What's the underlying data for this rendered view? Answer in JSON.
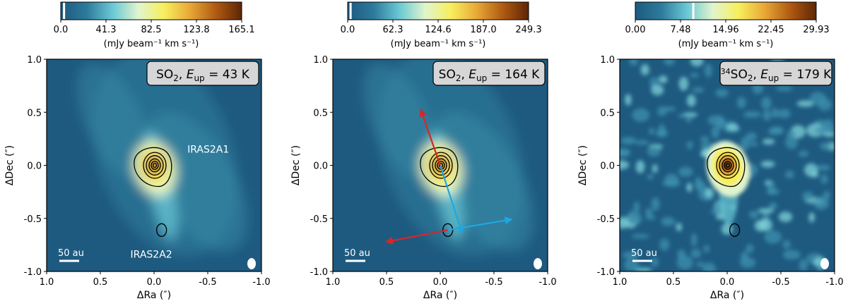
{
  "chart_data": [
    {
      "type": "heatmap",
      "title": "SO2, E_up = 43 K",
      "species": "SO",
      "subscript": "2",
      "isotope": "",
      "eup_sub": "up",
      "eup_value": "= 43 K",
      "colorbar": {
        "ticks": [
          "0.0",
          "41.3",
          "82.5",
          "123.8",
          "165.1"
        ],
        "range": [
          0,
          165.1
        ],
        "marker_value": 3.0,
        "label": "(mJy beam⁻¹ km s⁻¹)"
      },
      "xlabel": "ΔRa (″)",
      "ylabel": "ΔDec (″)",
      "xlim": [
        1.0,
        -1.0
      ],
      "ylim": [
        -1.0,
        1.0
      ],
      "xticks": [
        "1.0",
        "0.5",
        "0.0",
        "-0.5",
        "-1.0"
      ],
      "yticks": [
        "1.0",
        "0.5",
        "0.0",
        "-0.5",
        "-1.0"
      ],
      "scalebar_label": "50 au",
      "annotations": [
        "IRAS2A1",
        "IRAS2A2"
      ],
      "sources": [
        {
          "name": "IRAS2A1",
          "ra": 0.0,
          "dec": 0.0
        },
        {
          "name": "IRAS2A2",
          "ra": -0.07,
          "dec": -0.61
        }
      ],
      "peak_intensity": 1.0,
      "structure": "extended"
    },
    {
      "type": "heatmap",
      "title": "SO2, E_up = 164 K",
      "species": "SO",
      "subscript": "2",
      "isotope": "",
      "eup_sub": "up",
      "eup_value": "= 164 K",
      "colorbar": {
        "ticks": [
          "0.0",
          "62.3",
          "124.6",
          "187.0",
          "249.3"
        ],
        "range": [
          0,
          249.3
        ],
        "marker_value": 4.0,
        "label": "(mJy beam⁻¹ km s⁻¹)"
      },
      "xlabel": "ΔRa (″)",
      "ylabel": "ΔDec (″)",
      "xlim": [
        1.0,
        -1.0
      ],
      "ylim": [
        -1.0,
        1.0
      ],
      "xticks": [
        "1.0",
        "0.5",
        "0.0",
        "-0.5",
        "-1.0"
      ],
      "yticks": [
        "1.0",
        "0.5",
        "0.0",
        "-0.5",
        "-1.0"
      ],
      "scalebar_label": "50 au",
      "annotations": [],
      "outflow_arrows": [
        {
          "color": "#d62728",
          "from": [
            0.0,
            0.0
          ],
          "to": [
            0.18,
            0.52
          ]
        },
        {
          "color": "#1fa7e0",
          "from": [
            0.0,
            0.0
          ],
          "to": [
            -0.2,
            -0.63
          ]
        },
        {
          "color": "#d62728",
          "from": [
            -0.07,
            -0.61
          ],
          "to": [
            0.5,
            -0.72
          ]
        },
        {
          "color": "#1fa7e0",
          "from": [
            -0.07,
            -0.61
          ],
          "to": [
            -0.66,
            -0.51
          ]
        }
      ],
      "sources": [
        {
          "name": "IRAS2A1",
          "ra": 0.0,
          "dec": 0.0
        },
        {
          "name": "IRAS2A2",
          "ra": -0.07,
          "dec": -0.61
        }
      ],
      "peak_intensity": 1.0,
      "structure": "extended"
    },
    {
      "type": "heatmap",
      "title": "34SO2, E_up = 179 K",
      "species": "SO",
      "subscript": "2",
      "isotope": "34",
      "eup_sub": "up",
      "eup_value": "= 179 K",
      "colorbar": {
        "ticks": [
          "0.00",
          "7.48",
          "14.96",
          "22.45",
          "29.93"
        ],
        "range": [
          0,
          29.93
        ],
        "marker_value": 9.6,
        "label": "(mJy beam⁻¹ km s⁻¹)"
      },
      "xlabel": "ΔRa (″)",
      "ylabel": "ΔDec (″)",
      "xlim": [
        1.0,
        -1.0
      ],
      "ylim": [
        -1.0,
        1.0
      ],
      "xticks": [
        "1.0",
        "0.5",
        "0.0",
        "-0.5",
        "-1.0"
      ],
      "yticks": [
        "1.0",
        "0.5",
        "0.0",
        "-0.5",
        "-1.0"
      ],
      "scalebar_label": "50 au",
      "annotations": [],
      "sources": [
        {
          "name": "IRAS2A1",
          "ra": 0.0,
          "dec": 0.0
        },
        {
          "name": "IRAS2A2",
          "ra": -0.07,
          "dec": -0.61
        }
      ],
      "peak_intensity": 1.0,
      "structure": "noisy"
    }
  ],
  "colormap": [
    "#1e5a80",
    "#2d7a9c",
    "#6ac8d4",
    "#e0f5ce",
    "#f7ef5c",
    "#e8a838",
    "#b05a12",
    "#5e2506"
  ]
}
